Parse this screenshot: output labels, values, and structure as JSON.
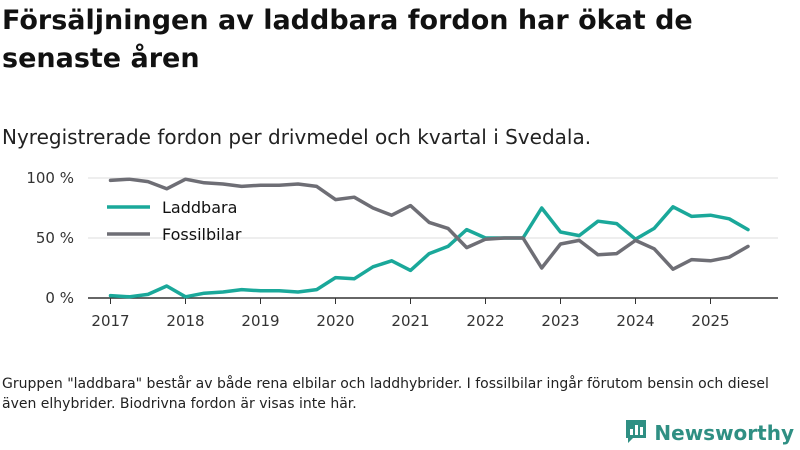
{
  "header": {
    "title": "Försäljningen av laddbara fordon har ökat de senaste åren",
    "subtitle": "Nyregistrerade fordon per drivmedel och kvartal i Svedala."
  },
  "footnote": "Gruppen \"laddbara\" består av både rena elbilar och laddhybrider. I fossilbilar ingår förutom bensin och diesel även elhybrider. Biodrivna fordon är visas inte här.",
  "brand": {
    "name": "Newsworthy",
    "icon": "newsworthy-logo-icon",
    "color": "#2f8f83"
  },
  "chart_data": {
    "type": "line",
    "title": "Nyregistrerade fordon per drivmedel och kvartal i Svedala.",
    "xlabel": "",
    "ylabel": "",
    "x": [
      2017.0,
      2017.25,
      2017.5,
      2017.75,
      2018.0,
      2018.25,
      2018.5,
      2018.75,
      2019.0,
      2019.25,
      2019.5,
      2019.75,
      2020.0,
      2020.25,
      2020.5,
      2020.75,
      2021.0,
      2021.25,
      2021.5,
      2021.75,
      2022.0,
      2022.25,
      2022.5,
      2022.75,
      2023.0,
      2023.25,
      2023.5,
      2023.75,
      2024.0,
      2024.25,
      2024.5,
      2024.75,
      2025.0,
      2025.25,
      2025.5
    ],
    "xlim": [
      2016.7,
      2025.9
    ],
    "ylim": [
      0,
      100
    ],
    "x_ticks": [
      {
        "value": 2017,
        "label": "2017"
      },
      {
        "value": 2018,
        "label": "2018"
      },
      {
        "value": 2019,
        "label": "2019"
      },
      {
        "value": 2020,
        "label": "2020"
      },
      {
        "value": 2021,
        "label": "2021"
      },
      {
        "value": 2022,
        "label": "2022"
      },
      {
        "value": 2023,
        "label": "2023"
      },
      {
        "value": 2024,
        "label": "2024"
      },
      {
        "value": 2025,
        "label": "2025"
      }
    ],
    "y_ticks": [
      {
        "value": 0,
        "label": "0 %"
      },
      {
        "value": 50,
        "label": "50 %"
      },
      {
        "value": 100,
        "label": "100 %"
      }
    ],
    "grid": true,
    "legend_position": "top-left",
    "series": [
      {
        "name": "Laddbara",
        "color": "#1aa89a",
        "values": [
          2,
          1,
          3,
          10,
          1,
          4,
          5,
          7,
          6,
          6,
          5,
          7,
          17,
          16,
          26,
          31,
          23,
          37,
          43,
          57,
          50,
          50,
          50,
          75,
          55,
          52,
          64,
          62,
          49,
          58,
          76,
          68,
          69,
          66,
          57
        ]
      },
      {
        "name": "Fossilbilar",
        "color": "#6e6e75",
        "values": [
          98,
          99,
          97,
          91,
          99,
          96,
          95,
          93,
          94,
          94,
          95,
          93,
          82,
          84,
          75,
          69,
          77,
          63,
          58,
          42,
          49,
          50,
          50,
          25,
          45,
          48,
          36,
          37,
          48,
          41,
          24,
          32,
          31,
          34,
          43
        ]
      }
    ]
  }
}
